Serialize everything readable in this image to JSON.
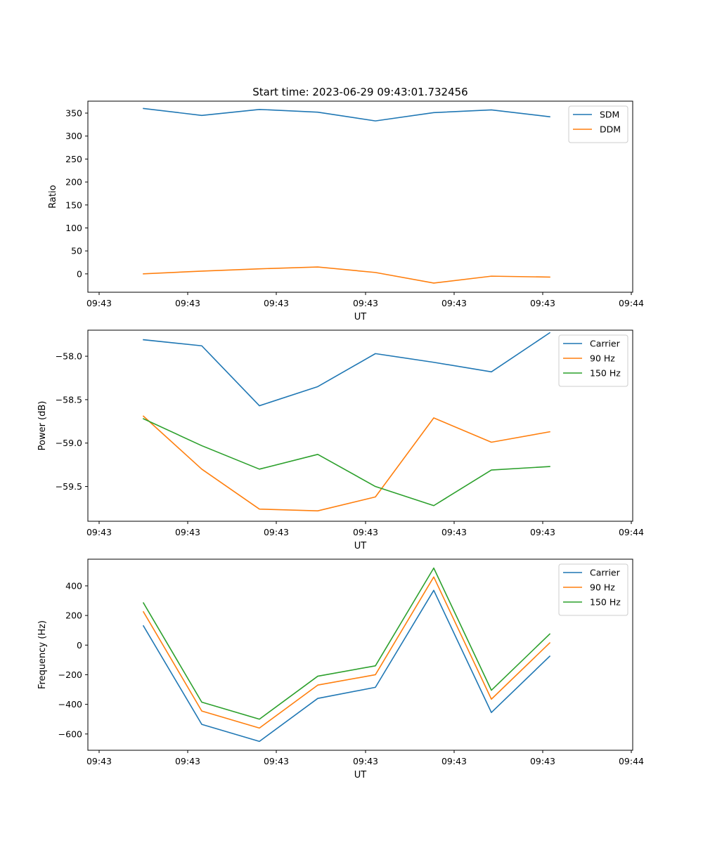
{
  "figure": {
    "title": "Start time: 2023-06-29 09:43:01.732456"
  },
  "chart_data": [
    {
      "type": "line",
      "title": "Start time: 2023-06-29 09:43:01.732456",
      "xlabel": "UT",
      "ylabel": "Ratio",
      "x_tick_labels": [
        "09:43",
        "09:43",
        "09:43",
        "09:43",
        "09:43",
        "09:43",
        "09:43"
      ],
      "y_ticks": [
        0,
        50,
        100,
        150,
        200,
        250,
        300,
        350
      ],
      "ylim": [
        -40,
        376
      ],
      "grid": false,
      "legend_position": "top-right",
      "series": [
        {
          "name": "SDM",
          "color": "#1f77b4",
          "values": [
            360,
            345,
            358,
            352,
            333,
            351,
            357,
            342
          ]
        },
        {
          "name": "DDM",
          "color": "#ff7f0e",
          "values": [
            0,
            6,
            11,
            15,
            3,
            -20,
            -5,
            -7
          ]
        }
      ]
    },
    {
      "type": "line",
      "title": "",
      "xlabel": "UT",
      "ylabel": "Power (dB)",
      "x_tick_labels": [
        "09:43",
        "09:43",
        "09:43",
        "09:43",
        "09:43",
        "09:43",
        "09:43"
      ],
      "y_ticks": [
        -59.5,
        -59.0,
        -58.5,
        -58.0
      ],
      "y_tick_labels": [
        "−59.5",
        "−59.0",
        "−58.5",
        "−58.0"
      ],
      "ylim": [
        -59.9,
        -57.7
      ],
      "grid": false,
      "legend_position": "top-right",
      "series": [
        {
          "name": "Carrier",
          "color": "#1f77b4",
          "values": [
            -57.81,
            -57.88,
            -58.57,
            -58.35,
            -57.97,
            -58.07,
            -58.18,
            -57.73
          ]
        },
        {
          "name": "90 Hz",
          "color": "#ff7f0e",
          "values": [
            -58.69,
            -59.3,
            -59.76,
            -59.78,
            -59.62,
            -58.71,
            -58.99,
            -58.87
          ]
        },
        {
          "name": "150 Hz",
          "color": "#2ca02c",
          "values": [
            -58.72,
            -59.03,
            -59.3,
            -59.13,
            -59.5,
            -59.72,
            -59.31,
            -59.27
          ]
        }
      ]
    },
    {
      "type": "line",
      "title": "",
      "xlabel": "UT",
      "ylabel": "Frequency (Hz)",
      "x_tick_labels": [
        "09:43",
        "09:43",
        "09:43",
        "09:43",
        "09:43",
        "09:43",
        "09:43"
      ],
      "y_ticks": [
        -600,
        -400,
        -200,
        0,
        200,
        400
      ],
      "y_tick_labels": [
        "−600",
        "−400",
        "−200",
        "0",
        "200",
        "400"
      ],
      "ylim": [
        -710,
        580
      ],
      "grid": false,
      "legend_position": "top-right",
      "series": [
        {
          "name": "Carrier",
          "color": "#1f77b4",
          "values": [
            130,
            -535,
            -650,
            -360,
            -285,
            370,
            -455,
            -75
          ]
        },
        {
          "name": "90 Hz",
          "color": "#ff7f0e",
          "values": [
            225,
            -445,
            -560,
            -270,
            -200,
            460,
            -365,
            15
          ]
        },
        {
          "name": "150 Hz",
          "color": "#2ca02c",
          "values": [
            285,
            -385,
            -500,
            -210,
            -140,
            520,
            -305,
            75
          ]
        }
      ]
    }
  ]
}
